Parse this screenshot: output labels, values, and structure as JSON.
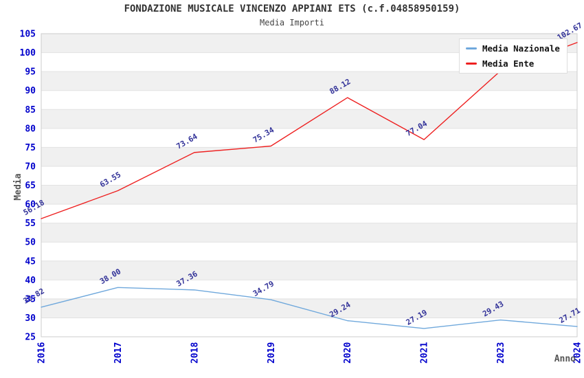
{
  "header": {
    "title": "FONDAZIONE MUSICALE VINCENZO APPIANI ETS (c.f.04858950159)",
    "subtitle": "Media Importi"
  },
  "legend": {
    "items": [
      {
        "label": "Media Nazionale",
        "color": "#6FA8DC"
      },
      {
        "label": "Media Ente",
        "color": "#EE2020"
      }
    ]
  },
  "chart_data": {
    "type": "line",
    "title": "FONDAZIONE MUSICALE VINCENZO APPIANI ETS (c.f.04858950159)",
    "subtitle": "Media Importi",
    "categories": [
      "2016",
      "2017",
      "2018",
      "2019",
      "2020",
      "2021",
      "2023",
      "2024"
    ],
    "series": [
      {
        "name": "Media Nazionale",
        "color": "#6FA8DC",
        "values": [
          32.82,
          38.0,
          37.36,
          34.79,
          29.24,
          27.19,
          29.43,
          27.71
        ],
        "labels": [
          "32.82",
          "38.00",
          "37.36",
          "34.79",
          "29.24",
          "27.19",
          "29.43",
          "27.71"
        ]
      },
      {
        "name": "Media Ente",
        "color": "#EE2020",
        "values": [
          56.18,
          63.55,
          73.64,
          75.34,
          88.12,
          77.04,
          95.2,
          102.67
        ],
        "labels": [
          "56.18",
          "63.55",
          "73.64",
          "75.34",
          "88.12",
          "77.04",
          null,
          "102.67"
        ]
      }
    ],
    "xlabel": "Anno",
    "ylabel": "Media",
    "ylim": [
      25,
      105
    ],
    "ytick_step": 5,
    "grid": "horizontal-alternating-bands",
    "band_colors": [
      "#ffffff",
      "#f0f0f0"
    ],
    "plot_border_color": "#cccccc",
    "gridline_color": "#e2e2e2",
    "tick_label_color": "#0000CC",
    "data_label_color": "#333399",
    "legend_position": "top-right"
  }
}
